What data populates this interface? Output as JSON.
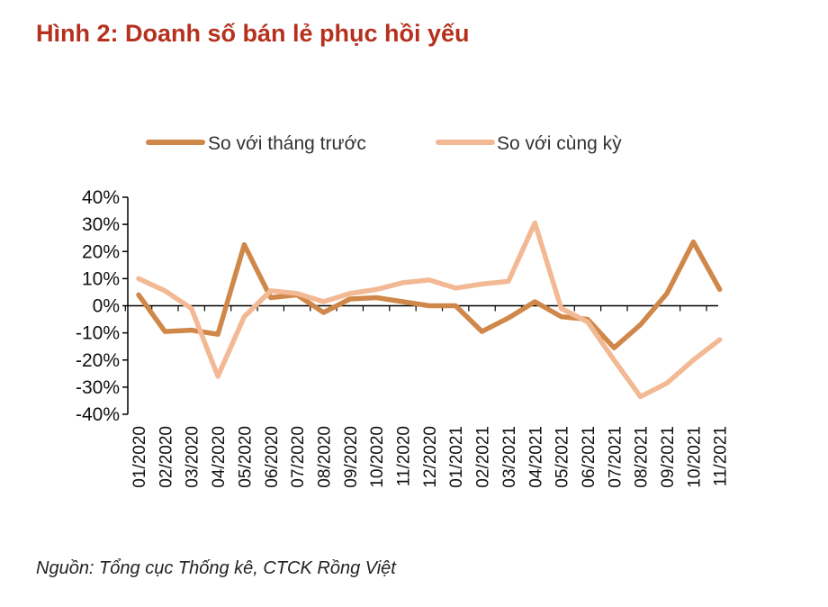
{
  "title": "Hình 2: Doanh số bán lẻ phục hồi yếu",
  "source": "Nguồn: Tổng cục Thống kê, CTCK Rồng Việt",
  "chart_data": {
    "type": "line",
    "categories": [
      "01/2020",
      "02/2020",
      "03/2020",
      "04/2020",
      "05/2020",
      "06/2020",
      "07/2020",
      "08/2020",
      "09/2020",
      "10/2020",
      "11/2020",
      "12/2020",
      "01/2021",
      "02/2021",
      "03/2021",
      "04/2021",
      "05/2021",
      "06/2021",
      "07/2021",
      "08/2021",
      "09/2021",
      "10/2021",
      "11/2021"
    ],
    "series": [
      {
        "name": "So với tháng trước",
        "color": "#d0884a",
        "values": [
          4,
          -9.5,
          -9,
          -10.5,
          22.5,
          3,
          4,
          -2.5,
          2.5,
          3,
          1.5,
          0,
          0,
          -9.5,
          -4.5,
          1.5,
          -4,
          -5,
          -15.5,
          -7,
          4.5,
          23.5,
          6
        ]
      },
      {
        "name": "So với cùng kỳ",
        "color": "#f2b994",
        "values": [
          10,
          5.5,
          -1,
          -26,
          -4,
          5.5,
          4.5,
          1.5,
          4.5,
          6,
          8.5,
          9.5,
          6.5,
          8,
          9,
          30.5,
          -1,
          -6,
          -20,
          -33.5,
          -28.5,
          -20,
          -12.5
        ]
      }
    ],
    "yticks": [
      "40%",
      "30%",
      "20%",
      "10%",
      "0%",
      "-10%",
      "-20%",
      "-30%",
      "-40%"
    ],
    "ylim": [
      -40,
      40
    ],
    "legend": "top",
    "grid": false
  }
}
